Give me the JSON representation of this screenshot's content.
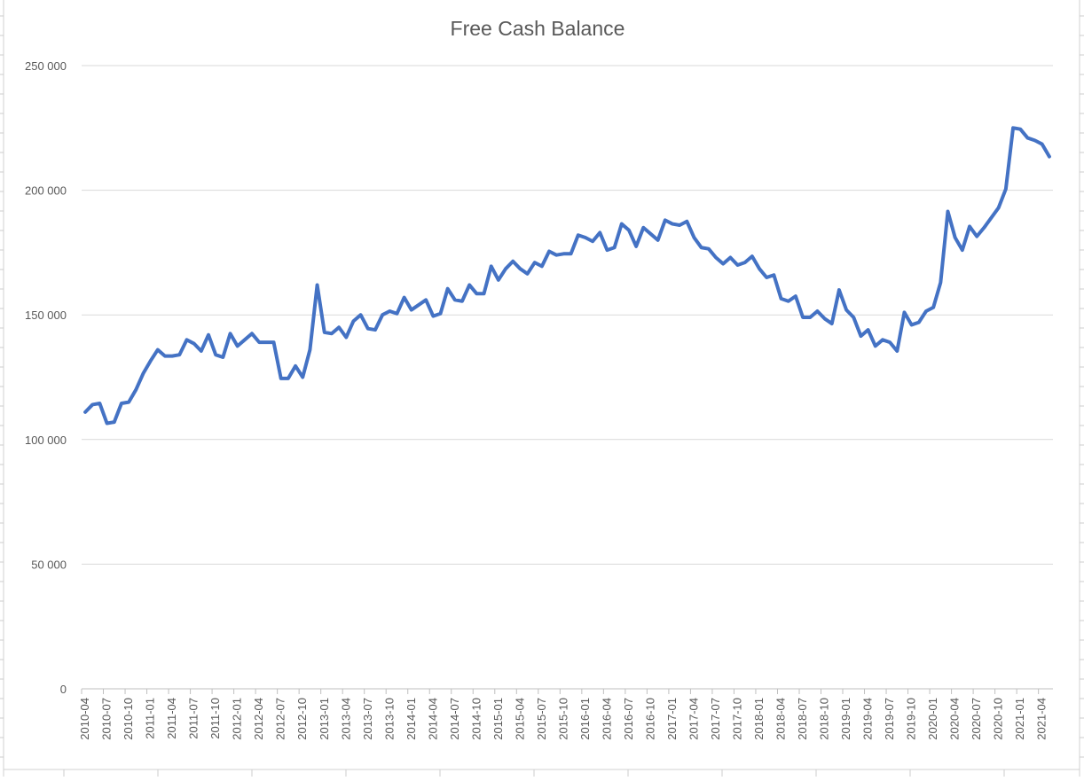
{
  "chart_data": {
    "type": "line",
    "title": "Free Cash Balance",
    "xlabel": "",
    "ylabel": "",
    "ylim": [
      0,
      250000
    ],
    "yticks": [
      0,
      50000,
      100000,
      150000,
      200000,
      250000
    ],
    "ytick_labels": [
      "0",
      "50 000",
      "100 000",
      "150 000",
      "200 000",
      "250 000"
    ],
    "grid": true,
    "legend": "none",
    "line_color": "#4472C4",
    "gridline_color": "#d9d9d9",
    "x_tick_labels": [
      "2010-04",
      "2010-07",
      "2010-10",
      "2011-01",
      "2011-04",
      "2011-07",
      "2011-10",
      "2012-01",
      "2012-04",
      "2012-07",
      "2012-10",
      "2013-01",
      "2013-04",
      "2013-07",
      "2013-10",
      "2014-01",
      "2014-04",
      "2014-07",
      "2014-10",
      "2015-01",
      "2015-04",
      "2015-07",
      "2015-10",
      "2016-01",
      "2016-04",
      "2016-07",
      "2016-10",
      "2017-01",
      "2017-04",
      "2017-07",
      "2017-10",
      "2018-01",
      "2018-04",
      "2018-07",
      "2018-10",
      "2019-01",
      "2019-04",
      "2019-07",
      "2019-10",
      "2020-01",
      "2020-04",
      "2020-07",
      "2020-10",
      "2021-01",
      "2021-04"
    ],
    "series": [
      {
        "values": [
          111000,
          114000,
          114500,
          106500,
          107000,
          114500,
          115000,
          120000,
          126500,
          131500,
          136000,
          133500,
          133500,
          134000,
          140000,
          138500,
          135500,
          142000,
          134000,
          133000,
          142500,
          137500,
          140000,
          142500,
          139000,
          139000,
          139000,
          124500,
          124500,
          129500,
          125000,
          136000,
          162000,
          143000,
          142500,
          145000,
          141000,
          147500,
          150000,
          144500,
          144000,
          150000,
          151500,
          150500,
          157000,
          152000,
          154000,
          156000,
          149500,
          150500,
          160500,
          156000,
          155500,
          162000,
          158500,
          158500,
          169500,
          164000,
          168500,
          171500,
          168500,
          166500,
          171000,
          169500,
          175500,
          174000,
          174500,
          174500,
          182000,
          181000,
          179500,
          183000,
          176000,
          177000,
          186500,
          184000,
          177500,
          185000,
          182500,
          180000,
          188000,
          186500,
          186000,
          187500,
          181000,
          177000,
          176500,
          173000,
          170500,
          173000,
          170000,
          171000,
          173500,
          168500,
          165000,
          166000,
          156500,
          155500,
          157500,
          149000,
          149000,
          151500,
          148500,
          146500,
          160000,
          152000,
          149000,
          141500,
          144000,
          137500,
          140000,
          139000,
          135500,
          151000,
          146000,
          147000,
          151500,
          153000,
          163000,
          191500,
          181000,
          176000,
          185500,
          181500,
          185000,
          189000,
          193000,
          200500,
          225000,
          224500,
          221000,
          220000,
          218500,
          213500
        ]
      }
    ]
  }
}
